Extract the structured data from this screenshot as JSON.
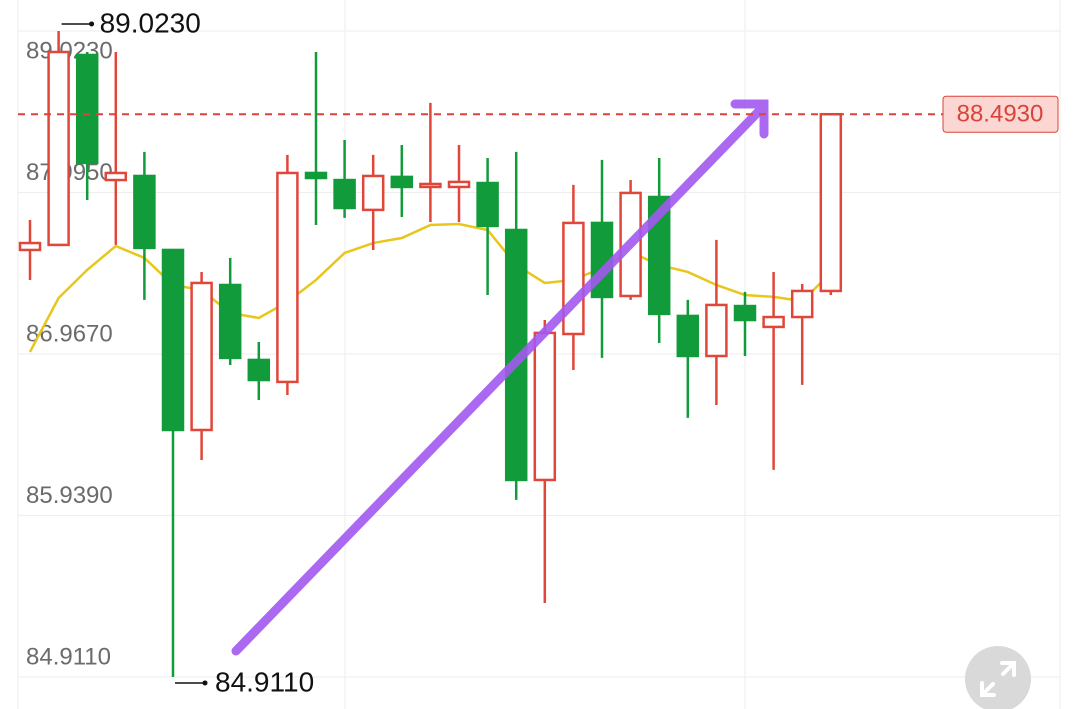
{
  "chart_data": {
    "type": "candlestick",
    "open": [
      87.629,
      87.661,
      88.87,
      88.074,
      88.1,
      87.629,
      86.483,
      87.406,
      86.929,
      86.789,
      88.119,
      88.074,
      87.884,
      88.094,
      88.03,
      88.03,
      88.055,
      87.756,
      86.165,
      87.094,
      87.801,
      87.336,
      87.966,
      87.209,
      86.954,
      87.272,
      87.139,
      87.202,
      87.368
    ],
    "high": [
      87.82,
      89.023,
      88.889,
      88.889,
      88.253,
      87.629,
      87.489,
      87.578,
      87.043,
      88.234,
      88.889,
      88.329,
      88.234,
      88.297,
      88.565,
      88.297,
      88.214,
      88.253,
      87.183,
      88.043,
      88.202,
      88.074,
      88.214,
      87.311,
      87.693,
      87.362,
      87.489,
      87.412,
      88.493
    ],
    "low": [
      87.438,
      87.661,
      87.947,
      87.661,
      87.311,
      84.911,
      86.292,
      86.897,
      86.674,
      86.706,
      87.788,
      87.833,
      87.629,
      87.839,
      87.807,
      87.807,
      87.342,
      86.038,
      85.382,
      86.865,
      86.942,
      87.311,
      87.037,
      86.56,
      86.642,
      86.954,
      86.229,
      86.77,
      87.342
    ],
    "close": [
      87.673,
      88.889,
      88.183,
      88.119,
      87.642,
      86.483,
      87.419,
      86.942,
      86.801,
      88.119,
      88.087,
      87.896,
      88.1,
      88.03,
      88.049,
      88.062,
      87.782,
      86.165,
      87.101,
      87.801,
      87.33,
      87.992,
      87.222,
      86.954,
      87.279,
      87.183,
      87.202,
      87.368,
      88.493
    ],
    "up_color": "#e0463a",
    "down_color": "#129b3b",
    "ma": {
      "color": "#e8c61a",
      "values": [
        86.98,
        87.323,
        87.502,
        87.654,
        87.578,
        87.406,
        87.374,
        87.228,
        87.196,
        87.298,
        87.438,
        87.61,
        87.673,
        87.705,
        87.788,
        87.794,
        87.756,
        87.533,
        87.419,
        87.438,
        87.514,
        87.616,
        87.533,
        87.489,
        87.406,
        87.342,
        87.33,
        87.304,
        87.482
      ]
    },
    "ylim": [
      84.707,
      89.22
    ],
    "yticks": [
      {
        "value": 89.023,
        "label": "89.0230"
      },
      {
        "value": 87.995,
        "label": "87.9950"
      },
      {
        "value": 86.967,
        "label": "86.9670"
      },
      {
        "value": 85.939,
        "label": "85.9390"
      },
      {
        "value": 84.911,
        "label": "84.9110"
      }
    ],
    "grid": true,
    "high_marker": {
      "value": 89.023,
      "label": "89.0230"
    },
    "low_marker": {
      "value": 84.911,
      "label": "84.9110"
    },
    "last_price": {
      "value": 88.493,
      "label": "88.4930",
      "color": "#d9443a"
    }
  }
}
